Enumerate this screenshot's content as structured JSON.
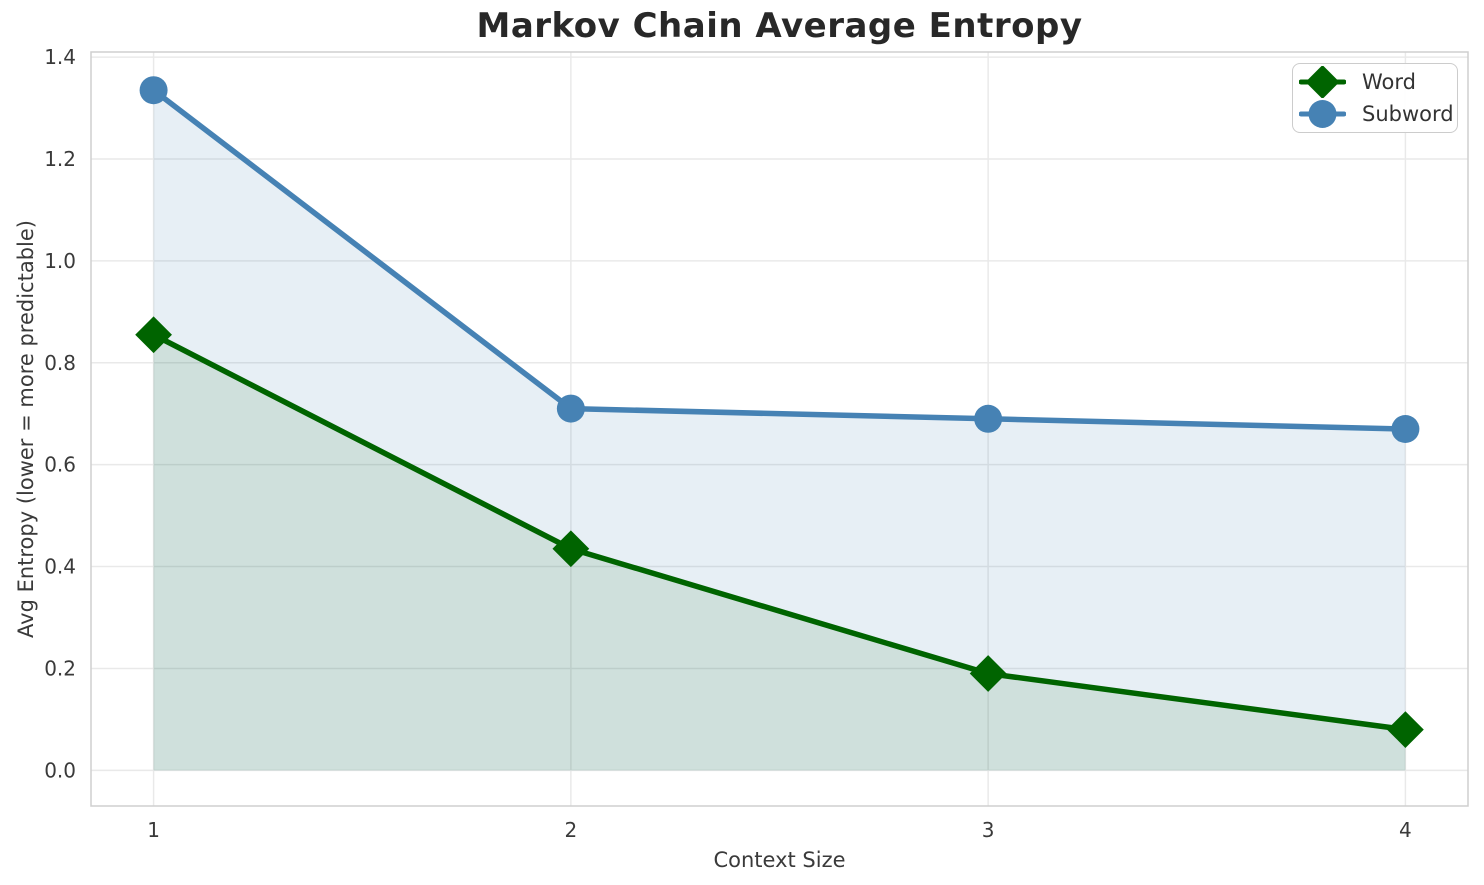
{
  "figure": {
    "title": "Markov Chain Average Entropy",
    "xlabel": "Context Size",
    "ylabel": "Avg Entropy (lower = more predictable)"
  },
  "legend": {
    "position": "upper right",
    "items": [
      {
        "label": "Word",
        "marker": "diamond",
        "color": "#006400"
      },
      {
        "label": "Subword",
        "marker": "circle",
        "color": "#4682B4"
      }
    ]
  },
  "chart_data": {
    "type": "line",
    "title": "Markov Chain Average Entropy",
    "xlabel": "Context Size",
    "ylabel": "Avg Entropy (lower = more predictable)",
    "x": [
      1,
      2,
      3,
      4
    ],
    "series": [
      {
        "name": "Word",
        "values": [
          0.855,
          0.435,
          0.19,
          0.08
        ],
        "color": "#006400",
        "marker": "diamond",
        "fill_to_zero": true
      },
      {
        "name": "Subword",
        "values": [
          1.335,
          0.71,
          0.69,
          0.67
        ],
        "color": "#4682B4",
        "marker": "circle",
        "fill_to_zero": true
      }
    ],
    "xlim": [
      0.85,
      4.15
    ],
    "ylim": [
      -0.07,
      1.41
    ],
    "xticks": [
      1,
      2,
      3,
      4
    ],
    "xtick_labels": [
      "1",
      "2",
      "3",
      "4"
    ],
    "yticks": [
      0.0,
      0.2,
      0.4,
      0.6,
      0.8,
      1.0,
      1.2,
      1.4
    ],
    "ytick_labels": [
      "0.0",
      "0.2",
      "0.4",
      "0.6",
      "0.8",
      "1.0",
      "1.2",
      "1.4"
    ],
    "grid": true,
    "fill_baseline": 0.0,
    "legend_position": "upper right",
    "colors": {
      "word_line": "#006400",
      "subword_line": "#4682B4",
      "word_fill": "rgba(0,100,0,0.10)",
      "subword_fill": "rgba(70,130,180,0.13)",
      "grid": "#e9e9e9",
      "spine": "#cfcfcf",
      "tick_text": "#3a3a3a",
      "title_text": "#282828",
      "background": "#ffffff"
    }
  }
}
